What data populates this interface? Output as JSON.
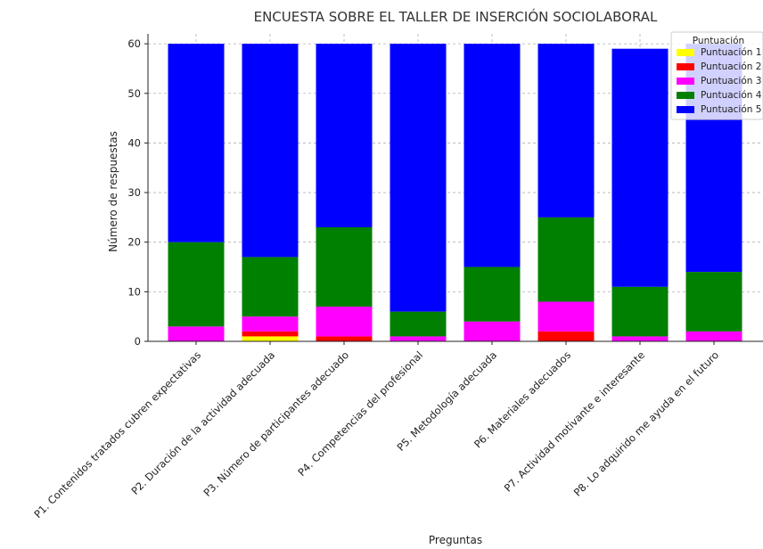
{
  "chart_data": {
    "type": "bar",
    "stacked": true,
    "title": "ENCUESTA SOBRE EL TALLER DE INSERCIÓN SOCIOLABORAL",
    "xlabel": "Preguntas",
    "ylabel": "Número de respuestas",
    "ylim": [
      0,
      62
    ],
    "yticks": [
      0,
      10,
      20,
      30,
      40,
      50,
      60
    ],
    "grid": true,
    "legend": {
      "title": "Puntuación",
      "position": "top-right"
    },
    "categories": [
      "P1. Contenidos tratados cubren expectativas",
      "P2. Duración de la actividad adecuada",
      "P3. Número de participantes adecuado",
      "P4. Competencias del profesional",
      "P5. Metodología adecuada",
      "P6. Materiales adecuados",
      "P7. Actividad motivante e interesante",
      "P8. Lo adquirido me ayuda en el futuro"
    ],
    "series": [
      {
        "name": "Puntuación 1",
        "color": "#ffff00",
        "values": [
          0,
          1,
          0,
          0,
          0,
          0,
          0,
          0
        ]
      },
      {
        "name": "Puntuación 2",
        "color": "#ff0000",
        "values": [
          0,
          1,
          1,
          0,
          0,
          2,
          0,
          0
        ]
      },
      {
        "name": "Puntuación 3",
        "color": "#ff00ff",
        "values": [
          3,
          3,
          6,
          1,
          4,
          6,
          1,
          2
        ]
      },
      {
        "name": "Puntuación 4",
        "color": "#008000",
        "values": [
          17,
          12,
          16,
          5,
          11,
          17,
          10,
          12
        ]
      },
      {
        "name": "Puntuación 5",
        "color": "#0000ff",
        "values": [
          40,
          43,
          37,
          54,
          45,
          35,
          48,
          46
        ]
      }
    ]
  }
}
